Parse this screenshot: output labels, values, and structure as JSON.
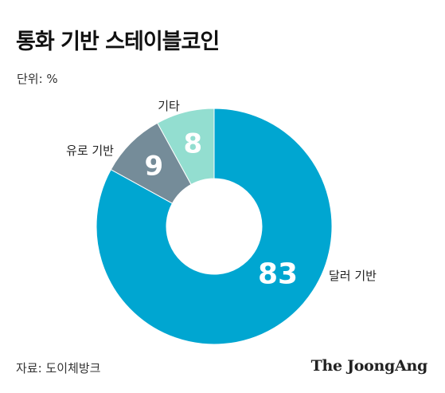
{
  "header": {
    "title": "통화 기반 스테이블코인",
    "unit": "단위: %"
  },
  "footer": {
    "source": "자료: 도이체방크",
    "brand": "The JoongAng"
  },
  "chart_data": {
    "type": "pie",
    "variant": "donut",
    "title": "통화 기반 스테이블코인",
    "unit": "%",
    "slices": [
      {
        "label": "달러 기반",
        "value": 83,
        "color": "#00a6d1"
      },
      {
        "label": "기타",
        "value": 9,
        "color": "#758c99"
      },
      {
        "label": "유로 기반",
        "value": 8,
        "color": "#93ded0"
      }
    ]
  }
}
